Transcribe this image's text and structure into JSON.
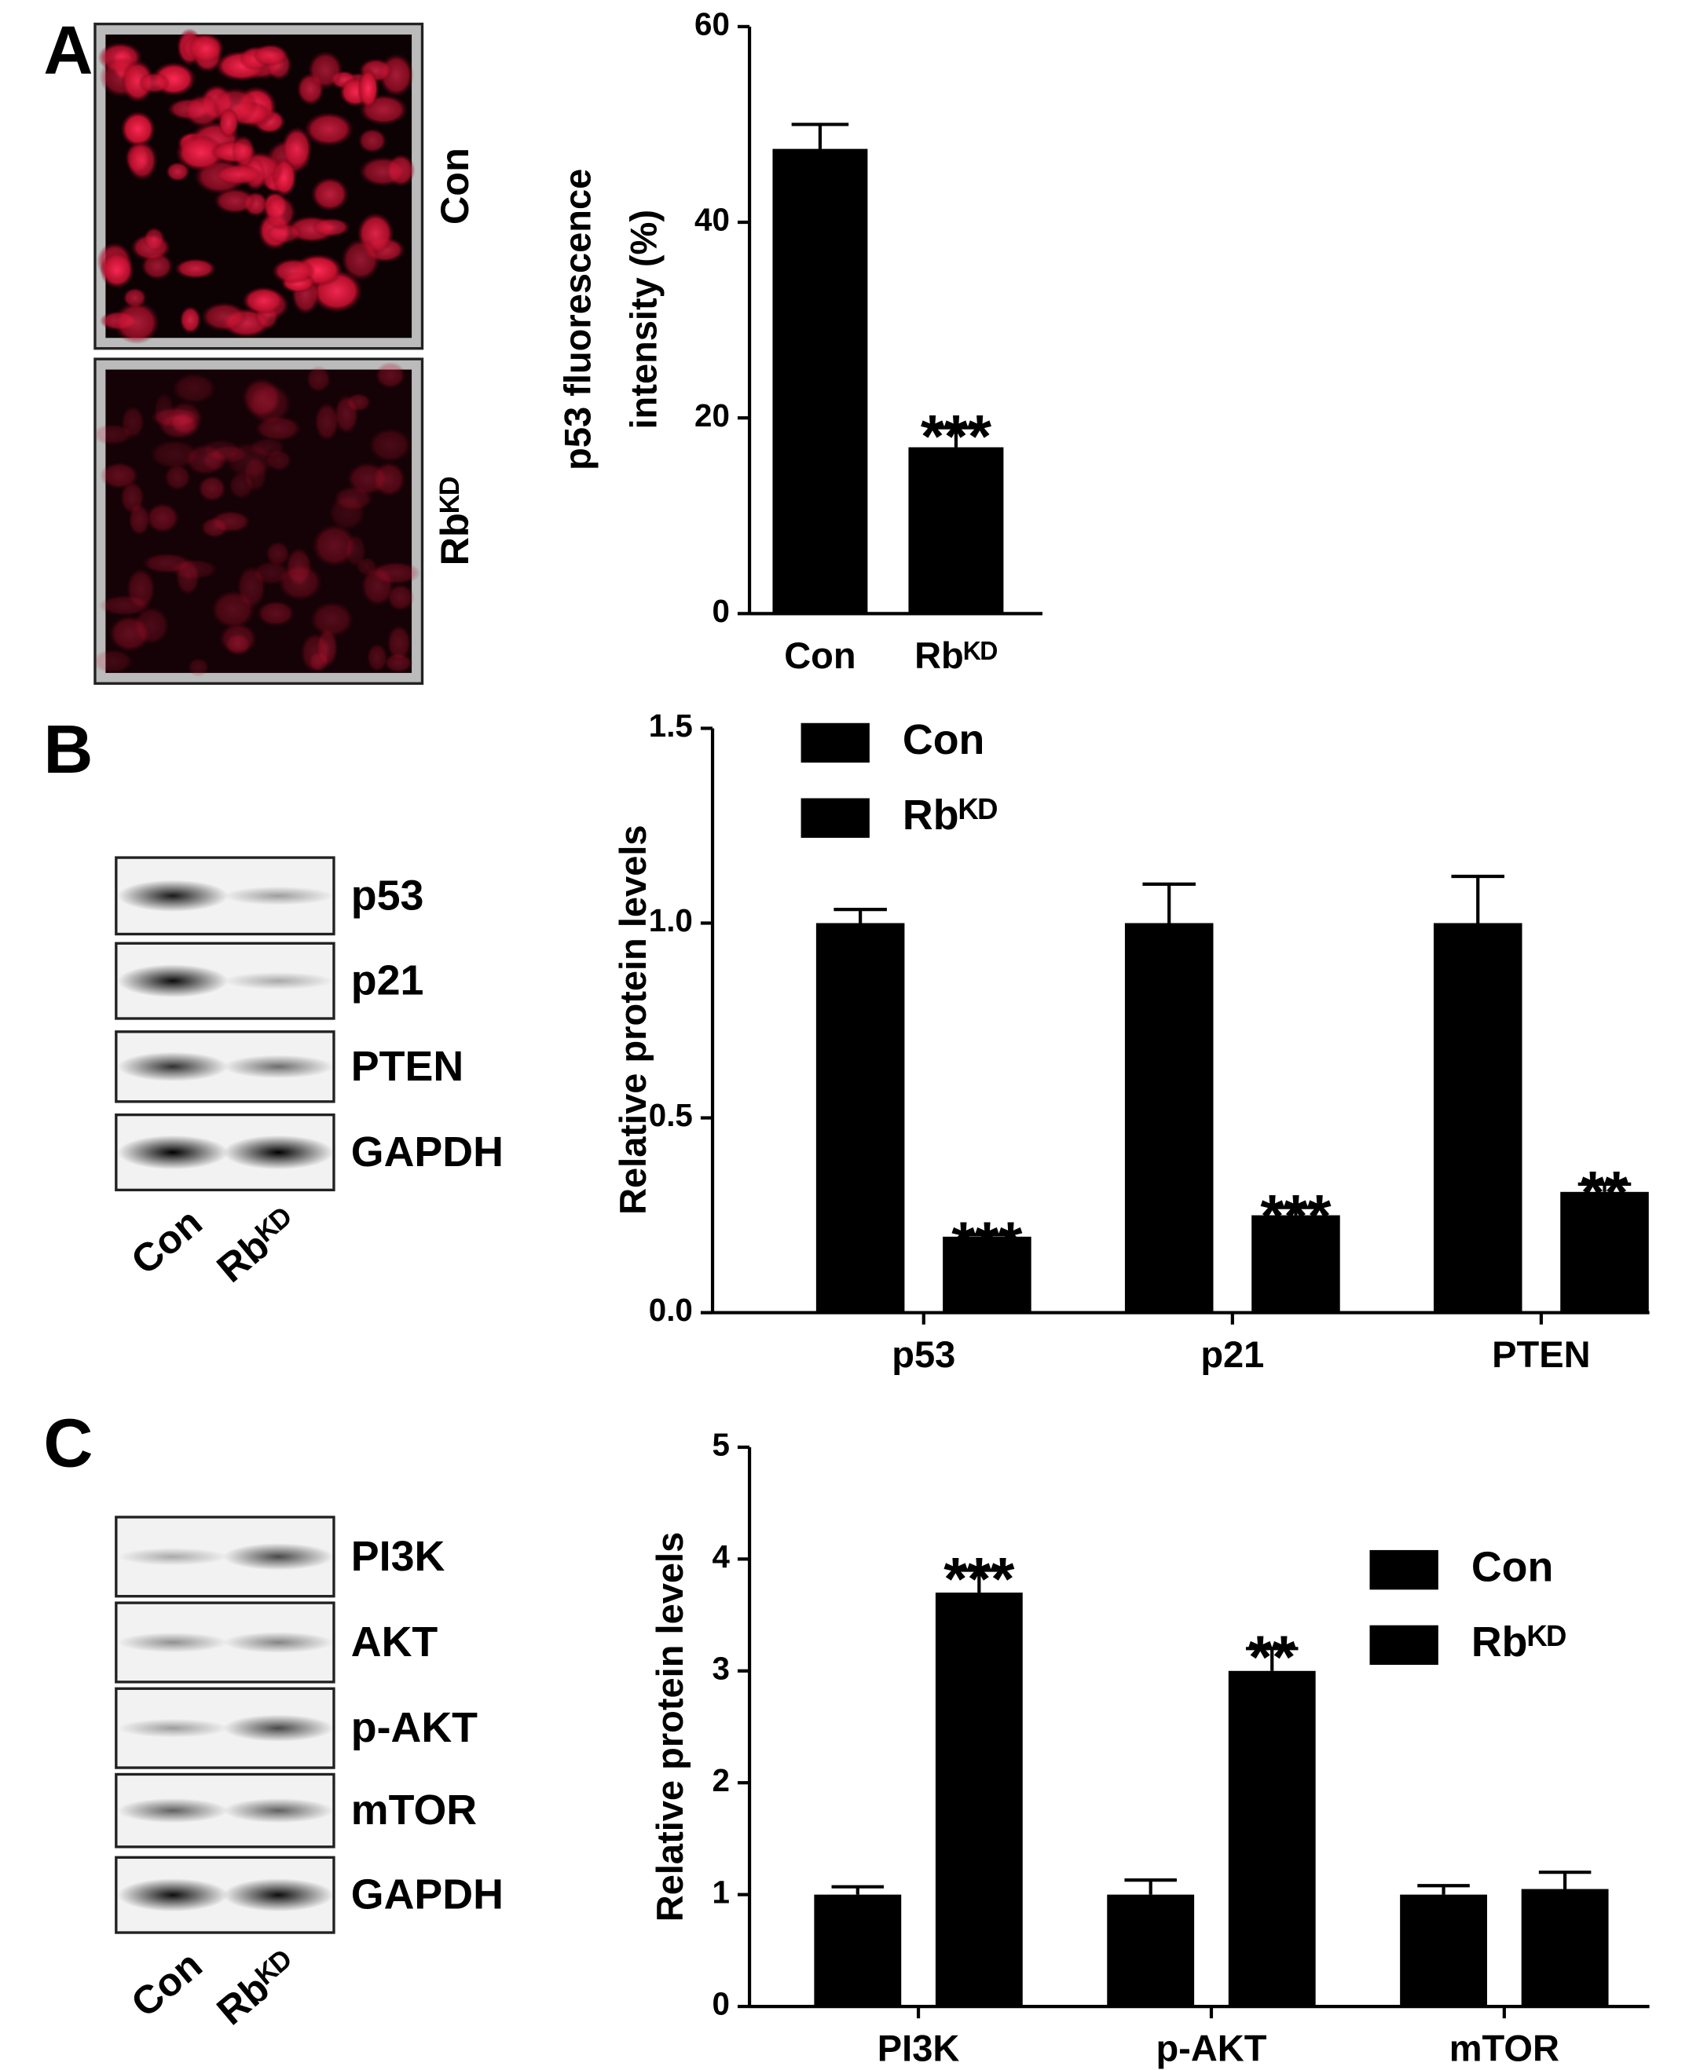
{
  "panel_labels": [
    "A",
    "B",
    "C"
  ],
  "micrographs": {
    "labels": [
      "Con",
      "Rbᴷᴰ"
    ]
  },
  "blots": [
    {
      "rows": [
        "p53",
        "p21",
        "PTEN",
        "GAPDH"
      ],
      "lanes": [
        "Con",
        "Rbᴷᴰ"
      ]
    },
    {
      "rows": [
        "PI3K",
        "AKT",
        "p-AKT",
        "mTOR",
        "GAPDH"
      ],
      "lanes": [
        "Con",
        "Rbᴷᴰ"
      ]
    }
  ],
  "chart_data": [
    {
      "type": "bar",
      "ylabel": [
        "p53 fluorescence",
        "intensity (%)"
      ],
      "categories": [
        "Con",
        "Rbᴷᴰ"
      ],
      "values": [
        47.5,
        17
      ],
      "errors": [
        2.5,
        2
      ],
      "significance": [
        null,
        "***"
      ],
      "color": "#000000",
      "ylim": [
        0,
        60
      ],
      "yticks": [
        0,
        20,
        40,
        60
      ]
    },
    {
      "type": "grouped_bar",
      "ylabel": [
        "Relative protein levels"
      ],
      "categories": [
        "p53",
        "p21",
        "PTEN"
      ],
      "series": [
        {
          "name": "Con",
          "color": "#000000",
          "values": [
            1,
            1,
            1
          ],
          "errors": [
            0.035,
            0.1,
            0.12
          ]
        },
        {
          "name": "Rbᴷᴰ",
          "color": "#000000",
          "values": [
            0.195,
            0.25,
            0.31
          ],
          "errors": [
            0.005,
            0.02,
            0.02
          ],
          "significance": [
            "***",
            "***",
            "**"
          ]
        }
      ],
      "ylim": [
        0,
        1.5
      ],
      "yticks": [
        {
          "value": 0,
          "label": "0.0"
        },
        {
          "value": 0.5,
          "label": "0.5"
        },
        {
          "value": 1,
          "label": "1.0"
        },
        {
          "value": 1.5,
          "label": "1.5"
        }
      ],
      "legend": "upper left"
    },
    {
      "type": "grouped_bar",
      "ylabel": [
        "Relative protein levels"
      ],
      "categories": [
        "PI3K",
        "p-AKT",
        "mTOR"
      ],
      "series": [
        {
          "name": "Con",
          "color": "#000000",
          "values": [
            1,
            1,
            1
          ],
          "errors": [
            0.07,
            0.13,
            0.08
          ]
        },
        {
          "name": "Rbᴷᴰ",
          "color": "#000000",
          "values": [
            3.7,
            3.0,
            1.05
          ],
          "errors": [
            0.2,
            0.2,
            0.15
          ],
          "significance": [
            "***",
            "**",
            null
          ]
        }
      ],
      "ylim": [
        0,
        5
      ],
      "yticks": [
        0,
        1,
        2,
        3,
        4,
        5
      ],
      "legend": "center right"
    }
  ]
}
